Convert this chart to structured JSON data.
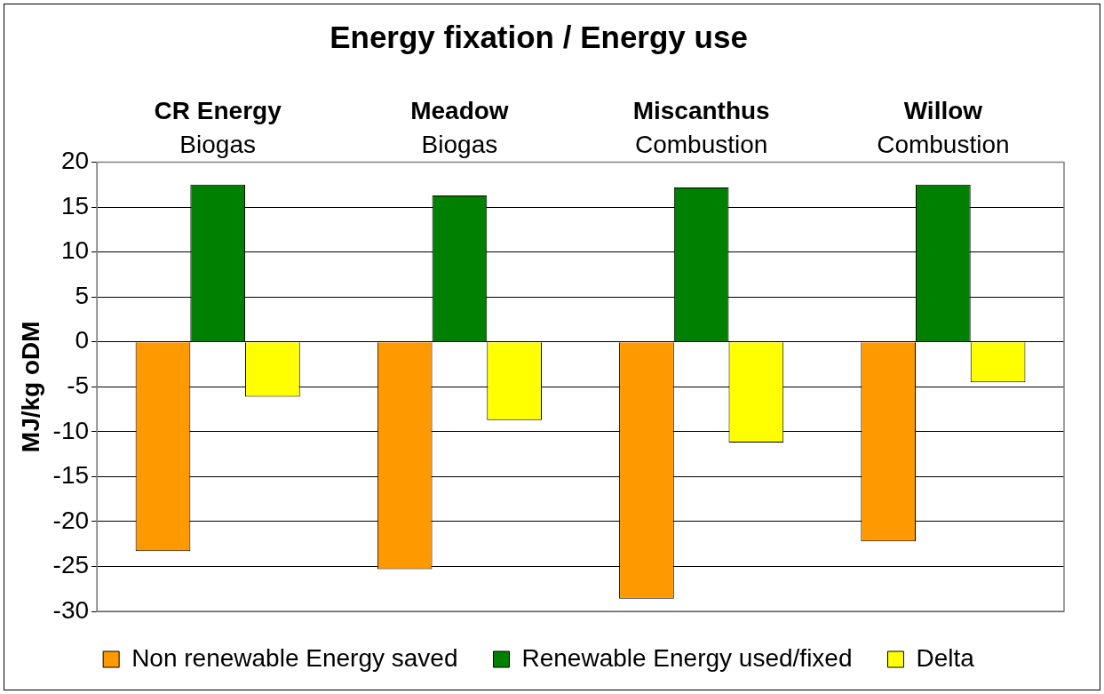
{
  "chart_data": {
    "type": "bar",
    "title": "Energy fixation / Energy use",
    "ylabel": "MJ/kg oDM",
    "categories": [
      "CR Energy",
      "Meadow",
      "Miscanthus",
      "Willow"
    ],
    "annotations": [
      "Biogas",
      "Biogas",
      "Combustion",
      "Combustion"
    ],
    "series": [
      {
        "name": "Non renewable Energy saved",
        "color": "#ff9900",
        "values": [
          -23.3,
          -25.3,
          -28.6,
          -22.2
        ]
      },
      {
        "name": "Renewable Energy used/fixed",
        "color": "#008000",
        "values": [
          17.5,
          16.3,
          17.2,
          17.5
        ]
      },
      {
        "name": "Delta",
        "color": "#ffff00",
        "values": [
          -6.1,
          -8.7,
          -11.2,
          -4.5
        ]
      }
    ],
    "ylim": [
      -30,
      20
    ],
    "yticks": [
      -30,
      -25,
      -20,
      -15,
      -10,
      -5,
      0,
      5,
      10,
      15,
      20
    ],
    "grid": "y",
    "legend": "bottom"
  }
}
